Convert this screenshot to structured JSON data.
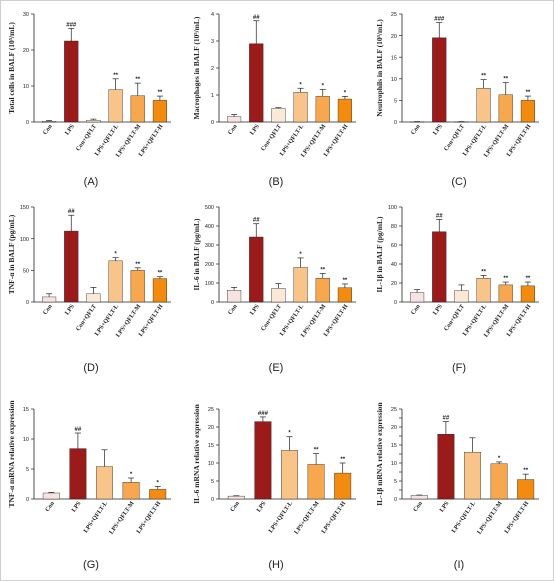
{
  "colors": {
    "con": "#f8e3e3",
    "lps": "#9b1a1a",
    "con_qflt": "#fbe9d8",
    "qflt_l": "#f9c48a",
    "qflt_m": "#f7a84f",
    "qflt_h": "#f28b0f",
    "axis": "#222222"
  },
  "chart_data": [
    {
      "type": "bar",
      "panel": "(A)",
      "ylabel": "Total cells in BALF (10⁵/mL)",
      "ylim": [
        0,
        30
      ],
      "yticks": [
        0,
        10,
        20,
        30
      ],
      "categories": [
        "Con",
        "LPS",
        "Con+QFLT",
        "LPS+QFLT-L",
        "LPS+QFLT-M",
        "LPS+QFLT-H"
      ],
      "colors": [
        "#f8e3e3",
        "#9b1a1a",
        "#fbe9d8",
        "#f9c48a",
        "#f7a84f",
        "#f28b0f"
      ],
      "values": [
        0.2,
        22.5,
        0.5,
        9.0,
        7.3,
        6.0
      ],
      "errors": [
        0.2,
        3.5,
        0.3,
        3.0,
        3.5,
        1.2
      ],
      "annotations": [
        "",
        "###",
        "",
        "**",
        "**",
        "**"
      ]
    },
    {
      "type": "bar",
      "panel": "(B)",
      "ylabel": "Macrophages in BALF (10⁵/mL)",
      "ylim": [
        0,
        4
      ],
      "yticks": [
        0,
        1,
        2,
        3,
        4
      ],
      "categories": [
        "Con",
        "LPS",
        "Con+QFLT",
        "LPS+QFLT-L",
        "LPS+QFLT-M",
        "LPS+QFLT-H"
      ],
      "colors": [
        "#f8e3e3",
        "#9b1a1a",
        "#fbe9d8",
        "#f9c48a",
        "#f7a84f",
        "#f28b0f"
      ],
      "values": [
        0.2,
        2.9,
        0.5,
        1.1,
        0.95,
        0.85
      ],
      "errors": [
        0.08,
        0.85,
        0.03,
        0.15,
        0.25,
        0.1
      ],
      "annotations": [
        "",
        "##",
        "",
        "*",
        "*",
        "*"
      ]
    },
    {
      "type": "bar",
      "panel": "(C)",
      "ylabel": "Neutrophils in BALF (10⁵/mL)",
      "ylim": [
        0,
        25
      ],
      "yticks": [
        0,
        5,
        10,
        15,
        20,
        25
      ],
      "categories": [
        "Con",
        "LPS",
        "Con+QFLT",
        "LPS+QFLT-L",
        "LPS+QFLT-M",
        "LPS+QFLT-H"
      ],
      "colors": [
        "#f8e3e3",
        "#9b1a1a",
        "#fbe9d8",
        "#f9c48a",
        "#f7a84f",
        "#f28b0f"
      ],
      "values": [
        0.05,
        19.5,
        0.05,
        7.8,
        6.3,
        5.0
      ],
      "errors": [
        0.05,
        3.5,
        0.05,
        2.0,
        2.8,
        1.0
      ],
      "annotations": [
        "",
        "###",
        "",
        "**",
        "**",
        "**"
      ]
    },
    {
      "type": "bar",
      "panel": "(D)",
      "ylabel": "TNF-α in BALF (pg/mL)",
      "ylim": [
        0,
        150
      ],
      "yticks": [
        0,
        50,
        100,
        150
      ],
      "categories": [
        "Con",
        "LPS",
        "Con+QFLT",
        "LPS+QFLT-L",
        "LPS+QFLT-M",
        "LPS+QFLT-H"
      ],
      "colors": [
        "#f8e3e3",
        "#9b1a1a",
        "#fbe9d8",
        "#f9c48a",
        "#f7a84f",
        "#f28b0f"
      ],
      "values": [
        8,
        112,
        13,
        65,
        50,
        37
      ],
      "errors": [
        5,
        25,
        10,
        5,
        4,
        3
      ],
      "annotations": [
        "",
        "##",
        "",
        "*",
        "**",
        "**"
      ]
    },
    {
      "type": "bar",
      "panel": "(E)",
      "ylabel": "IL-6 in BALF (pg/mL)",
      "ylim": [
        0,
        500
      ],
      "yticks": [
        0,
        100,
        200,
        300,
        400,
        500
      ],
      "categories": [
        "Con",
        "LPS",
        "Con+QFLT",
        "LPS+QFLT-L",
        "LPS+QFLT-M",
        "LPS+QFLT-H"
      ],
      "colors": [
        "#f8e3e3",
        "#9b1a1a",
        "#fbe9d8",
        "#f9c48a",
        "#f7a84f",
        "#f28b0f"
      ],
      "values": [
        62,
        342,
        72,
        182,
        125,
        75
      ],
      "errors": [
        15,
        70,
        25,
        50,
        25,
        20
      ],
      "annotations": [
        "",
        "##",
        "",
        "*",
        "**",
        "**"
      ]
    },
    {
      "type": "bar",
      "panel": "(F)",
      "ylabel": "IL-1β in BALF (pg/mL)",
      "ylim": [
        0,
        100
      ],
      "yticks": [
        0,
        20,
        40,
        60,
        80,
        100
      ],
      "categories": [
        "Con",
        "LPS",
        "Con+QFLT",
        "LPS+QFLT-L",
        "LPS+QFLT-M",
        "LPS+QFLT-H"
      ],
      "colors": [
        "#f8e3e3",
        "#9b1a1a",
        "#fbe9d8",
        "#f9c48a",
        "#f7a84f",
        "#f28b0f"
      ],
      "values": [
        10,
        74,
        12,
        25,
        18,
        17
      ],
      "errors": [
        3,
        13,
        6,
        3,
        3,
        4
      ],
      "annotations": [
        "",
        "##",
        "",
        "**",
        "**",
        "**"
      ]
    },
    {
      "type": "bar",
      "panel": "(G)",
      "ylabel": "TNF-α mRNA relative expression",
      "ylim": [
        0,
        15
      ],
      "yticks": [
        0,
        5,
        10,
        15
      ],
      "categories": [
        "Con",
        "LPS",
        "LPS+QFLT-L",
        "LPS+QFLT-M",
        "LPS+QFLT-H"
      ],
      "colors": [
        "#f8e3e3",
        "#9b1a1a",
        "#f9c48a",
        "#f7a84f",
        "#f28b0f"
      ],
      "values": [
        1.0,
        8.4,
        5.4,
        2.8,
        1.6
      ],
      "errors": [
        0.1,
        2.6,
        2.8,
        0.7,
        0.5
      ],
      "annotations": [
        "",
        "##",
        "",
        "*",
        "*"
      ]
    },
    {
      "type": "bar",
      "panel": "(H)",
      "ylabel": "IL-6 mRNA relative expression",
      "ylim": [
        0,
        25
      ],
      "yticks": [
        0,
        5,
        10,
        15,
        20,
        25
      ],
      "categories": [
        "Con",
        "LPS",
        "LPS+QFLT-L",
        "LPS+QFLT-M",
        "LPS+QFLT-H"
      ],
      "colors": [
        "#f8e3e3",
        "#9b1a1a",
        "#f9c48a",
        "#f7a84f",
        "#f28b0f"
      ],
      "values": [
        0.8,
        21.5,
        13.5,
        9.6,
        7.2
      ],
      "errors": [
        0.1,
        1.3,
        3.8,
        3.0,
        2.8
      ],
      "annotations": [
        "",
        "###",
        "*",
        "**",
        "**"
      ]
    },
    {
      "type": "bar",
      "panel": "(I)",
      "ylabel": "IL-1β mRNA relative expression",
      "ylim": [
        0,
        25
      ],
      "yticks": [
        0,
        2.5,
        5,
        7.5,
        10,
        12.5,
        15,
        17.5,
        20,
        22.5,
        25
      ],
      "yticklabels": [
        "0",
        "",
        "5",
        "",
        "10",
        "",
        "15",
        "",
        "20",
        "",
        "25"
      ],
      "categories": [
        "Con",
        "LPS",
        "LPS+QFLT-L",
        "LPS+QFLT-M",
        "LPS+QFLT-H"
      ],
      "colors": [
        "#f8e3e3",
        "#9b1a1a",
        "#f9c48a",
        "#f7a84f",
        "#f28b0f"
      ],
      "values": [
        1.0,
        18.0,
        13.0,
        9.8,
        5.4
      ],
      "errors": [
        0.1,
        3.5,
        4.0,
        0.5,
        1.5
      ],
      "annotations": [
        "",
        "##",
        "",
        "*",
        "**"
      ]
    }
  ]
}
